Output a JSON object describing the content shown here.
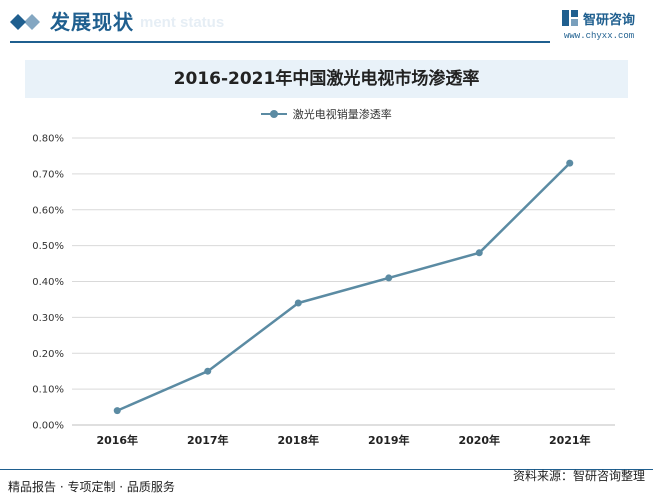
{
  "header": {
    "title": "发展现状",
    "subtitle_watermark": "ment status",
    "brand_name": "智研咨询",
    "brand_url": "www.chyxx.com"
  },
  "footer": {
    "left": "精品报告 · 专项定制 · 品质服务",
    "right": "资料来源：智研咨询整理"
  },
  "colors": {
    "brand": "#1f5f8f",
    "series": "#5b8ba3",
    "title_band": "#e9f2f9",
    "grid": "#d9d9d9"
  },
  "chart_data": {
    "type": "line",
    "title": "2016-2021年中国激光电视市场渗透率",
    "categories": [
      "2016年",
      "2017年",
      "2018年",
      "2019年",
      "2020年",
      "2021年"
    ],
    "series": [
      {
        "name": "激光电视销量渗透率",
        "values": [
          0.04,
          0.15,
          0.34,
          0.41,
          0.48,
          0.73
        ]
      }
    ],
    "ylim": [
      0,
      0.8
    ],
    "yticks": [
      "0.00%",
      "0.10%",
      "0.20%",
      "0.30%",
      "0.40%",
      "0.50%",
      "0.60%",
      "0.70%",
      "0.80%"
    ],
    "ytick_values": [
      0,
      0.1,
      0.2,
      0.3,
      0.4,
      0.5,
      0.6,
      0.7,
      0.8
    ],
    "grid": true,
    "legend": "top-center"
  }
}
